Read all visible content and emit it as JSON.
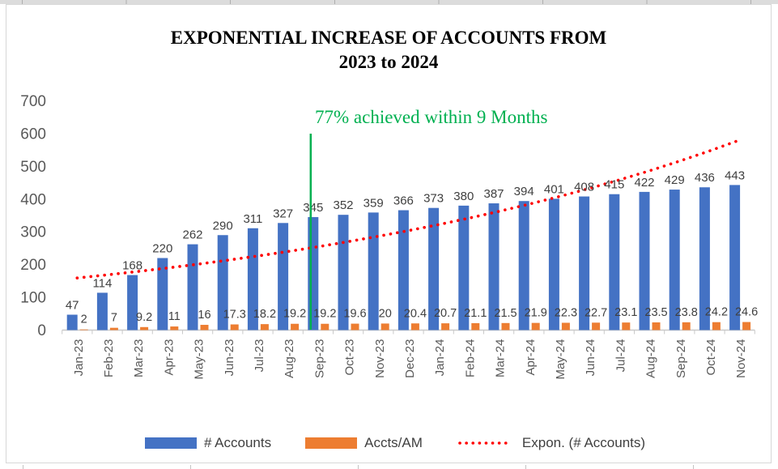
{
  "title": {
    "line1": "EXPONENTIAL INCREASE OF ACCOUNTS FROM",
    "line2": "2023 to 2024"
  },
  "annotation": {
    "text": "77% achieved within 9 Months",
    "at_category": "Sep-23"
  },
  "colors": {
    "accounts_bar": "#4472C4",
    "accts_am_bar": "#ED7D31",
    "trendline": "#FF0000",
    "annotation": "#00B050",
    "axis_text": "#595959",
    "data_label": "#404040",
    "axis_line": "#C9C9C9",
    "title_text": "#000000"
  },
  "y_axis": {
    "ticks": [
      0,
      100,
      200,
      300,
      400,
      500,
      600,
      700
    ]
  },
  "legend": [
    {
      "label": "# Accounts",
      "type": "bar",
      "color": "#4472C4"
    },
    {
      "label": "Accts/AM",
      "type": "bar",
      "color": "#ED7D31"
    },
    {
      "label": "Expon. (# Accounts)",
      "type": "dotted-line",
      "color": "#FF0000"
    }
  ],
  "chart_data": {
    "type": "bar",
    "title": "EXPONENTIAL INCREASE OF ACCOUNTS FROM 2023 to 2024",
    "categories": [
      "Jan-23",
      "Feb-23",
      "Mar-23",
      "Apr-23",
      "May-23",
      "Jun-23",
      "Jul-23",
      "Aug-23",
      "Sep-23",
      "Oct-23",
      "Nov-23",
      "Dec-23",
      "Jan-24",
      "Feb-24",
      "Mar-24",
      "Apr-24",
      "May-24",
      "Jun-24",
      "Jul-24",
      "Aug-24",
      "Sep-24",
      "Oct-24",
      "Nov-24"
    ],
    "series": [
      {
        "name": "# Accounts",
        "color": "#4472C4",
        "values": [
          47,
          114,
          168,
          220,
          262,
          290,
          311,
          327,
          345,
          352,
          359,
          366,
          373,
          380,
          387,
          394,
          401,
          408,
          415,
          422,
          429,
          436,
          443
        ]
      },
      {
        "name": "Accts/AM",
        "color": "#ED7D31",
        "values": [
          2,
          7,
          9.2,
          11,
          16,
          17.3,
          18.2,
          19.2,
          19.2,
          19.6,
          20,
          20.4,
          20.7,
          21.1,
          21.5,
          21.9,
          22.3,
          22.7,
          23.1,
          23.5,
          23.8,
          24.2,
          24.6
        ]
      }
    ],
    "trendline": {
      "name": "Expon. (# Accounts)",
      "applies_to": "# Accounts",
      "fit": "exponential",
      "style": "dotted"
    },
    "annotation": {
      "text": "77% achieved within 9 Months",
      "at_category": "Sep-23"
    },
    "xlabel": "",
    "ylabel": "",
    "ylim": [
      0,
      700
    ],
    "grid": false,
    "legend_position": "bottom"
  }
}
